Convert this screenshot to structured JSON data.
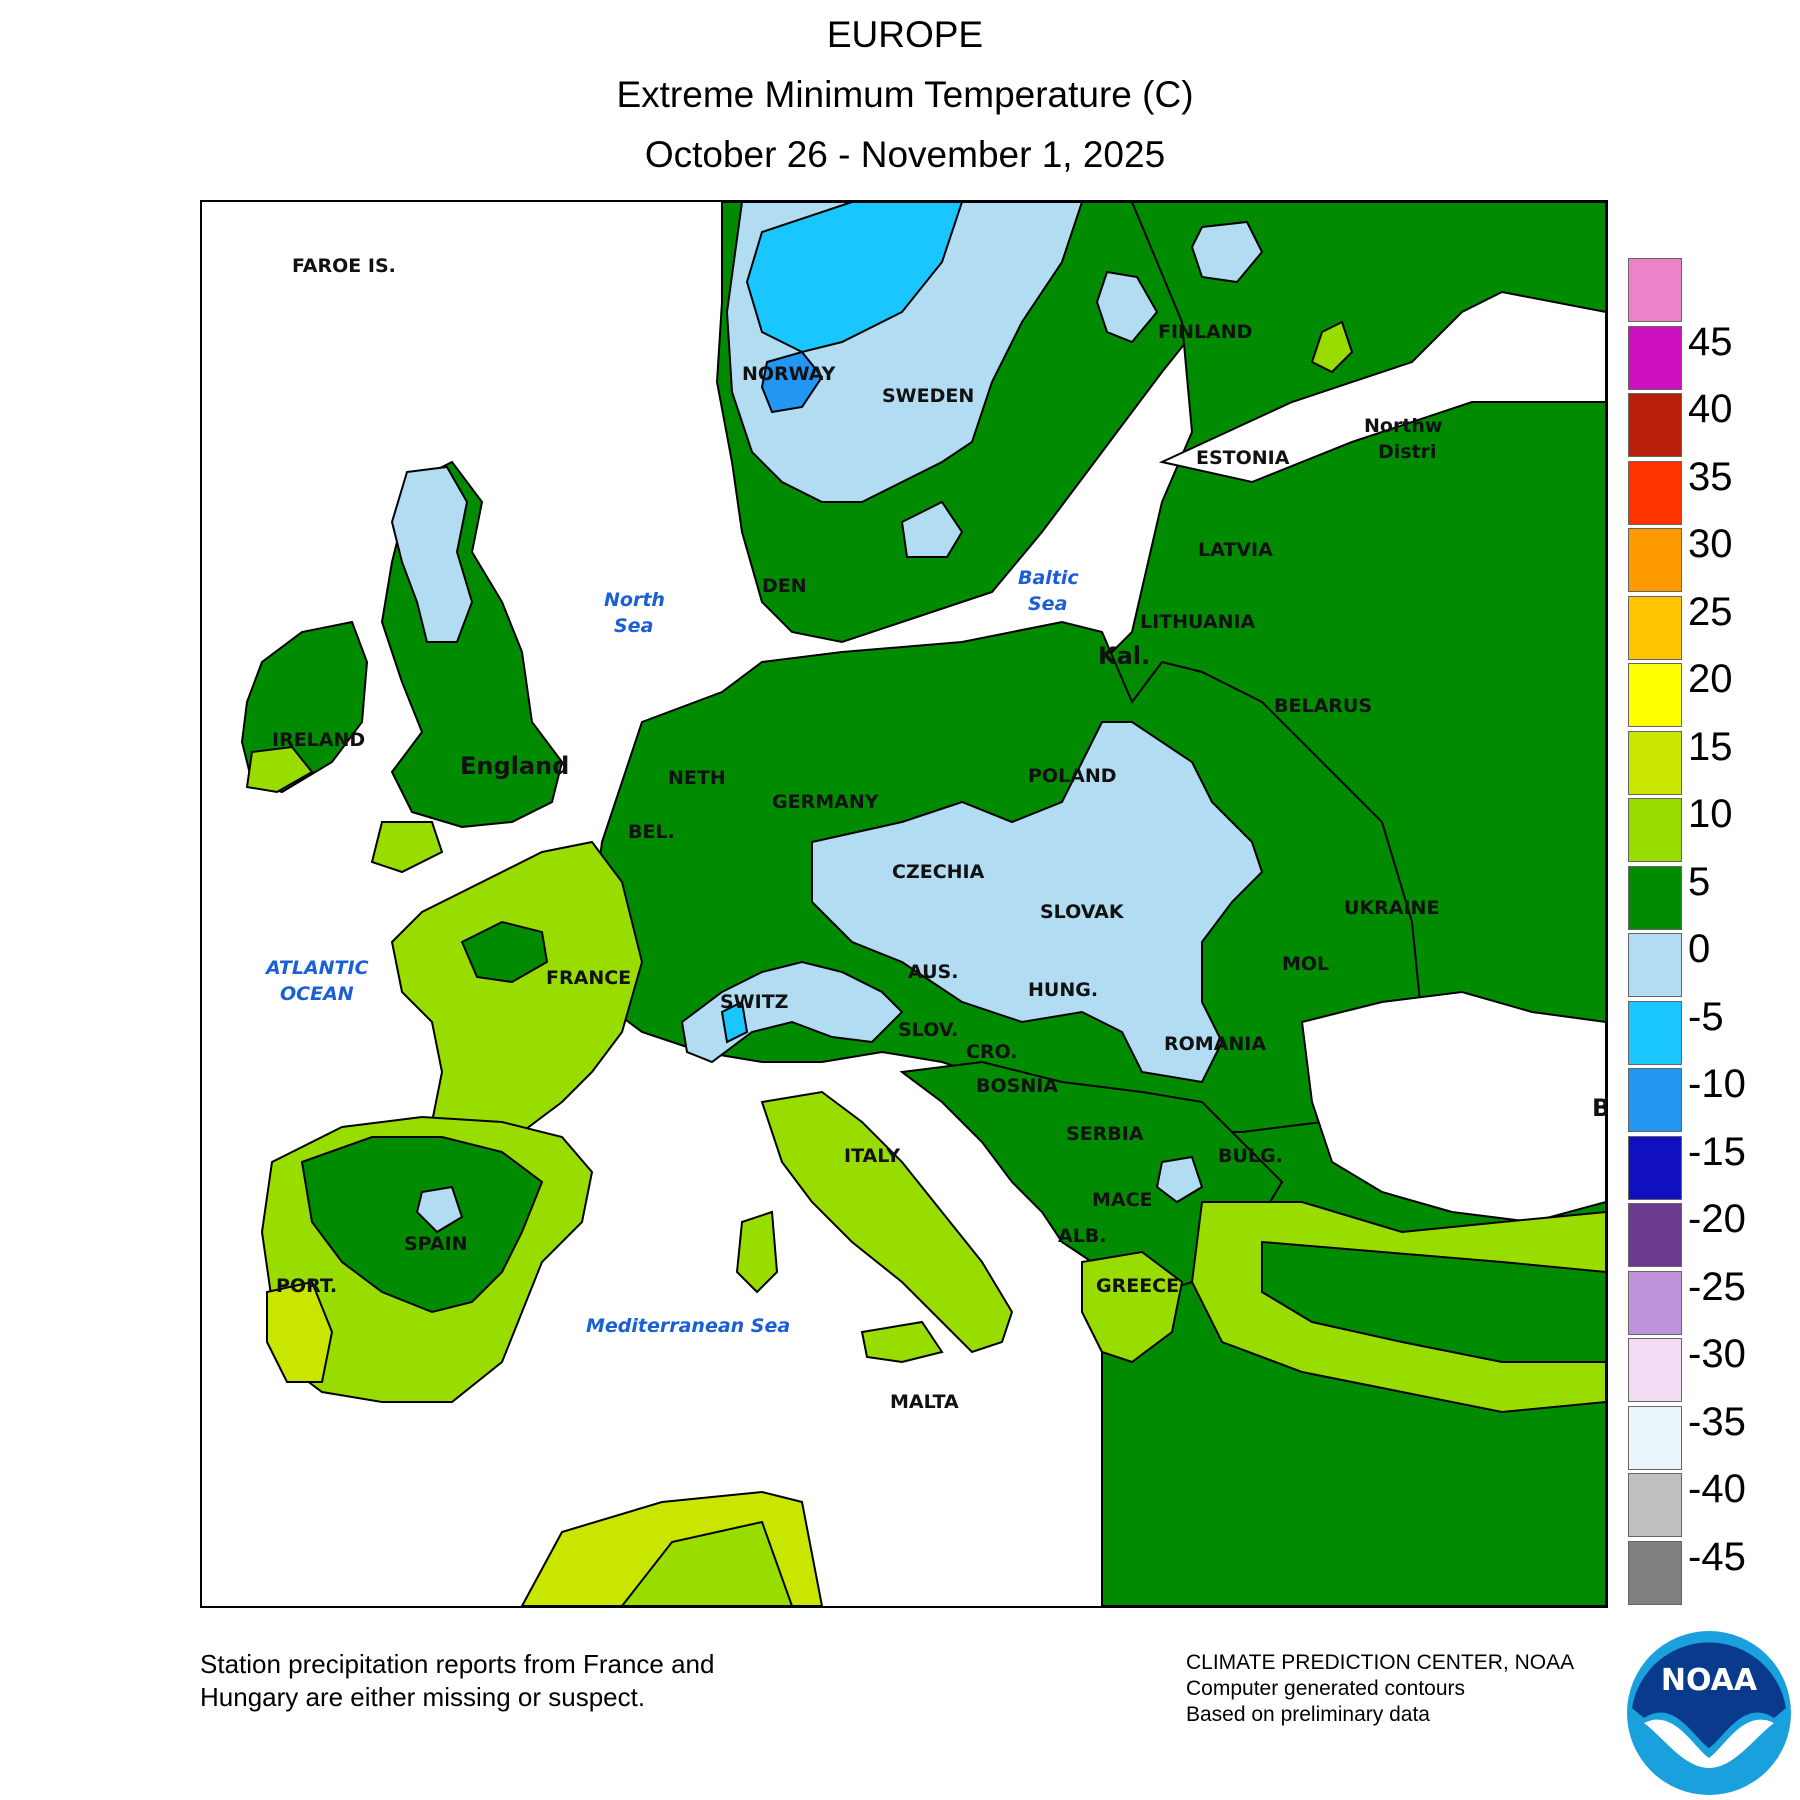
{
  "header": {
    "region": "EUROPE",
    "variable": "Extreme Minimum Temperature (C)",
    "period": "October 26 - November 1, 2025"
  },
  "map": {
    "country_labels": {
      "faroe": "FAROE IS.",
      "norway": "NORWAY",
      "sweden": "SWEDEN",
      "finland": "FINLAND",
      "estonia": "ESTONIA",
      "latvia": "LATVIA",
      "lithuania": "LITHUANIA",
      "kal": "Kal.",
      "belarus": "BELARUS",
      "poland": "POLAND",
      "ukraine": "UKRAINE",
      "northwest": "Northw",
      "district": "Distri",
      "ireland": "IRELAND",
      "england": "England",
      "denmark": "DEN",
      "netherlands": "NETH",
      "belgium": "BEL.",
      "germany": "GERMANY",
      "czechia": "CZECHIA",
      "slovakia": "SLOVAK",
      "france": "FRANCE",
      "switzerland": "SWITZ",
      "austria": "AUS.",
      "hungary": "HUNG.",
      "moldova": "MOL",
      "slovenia": "SLOV.",
      "croatia": "CRO.",
      "romania": "ROMANIA",
      "bosnia": "BOSNIA",
      "serbia": "SERBIA",
      "bulgaria": "BULG.",
      "italy": "ITALY",
      "macedonia": "MACE",
      "albania": "ALB.",
      "greece": "GREECE",
      "spain": "SPAIN",
      "portugal": "PORT.",
      "malta": "MALTA",
      "black_sea_edge": "B"
    },
    "sea_labels": {
      "north_sea_1": "North",
      "north_sea_2": "Sea",
      "baltic_1": "Baltic",
      "baltic_2": "Sea",
      "atlantic_1": "ATLANTIC",
      "atlantic_2": "OCEAN",
      "mediterranean": "Mediterranean Sea"
    }
  },
  "legend": {
    "ticks": [
      "45",
      "40",
      "35",
      "30",
      "25",
      "20",
      "15",
      "10",
      "5",
      "0",
      "-5",
      "-10",
      "-15",
      "-20",
      "-25",
      "-30",
      "-35",
      "-40",
      "-45"
    ],
    "colors": [
      "#ee82c8",
      "#cc10c0",
      "#b81e0a",
      "#ff3300",
      "#ff9900",
      "#ffc400",
      "#ffff00",
      "#c8e600",
      "#99dd00",
      "#008b00",
      "#b2dcf2",
      "#19c6ff",
      "#2196f3",
      "#1010c0",
      "#6b3b8f",
      "#c094dc",
      "#f4dcf4",
      "#eaf6fc",
      "#c0c0c0",
      "#808080"
    ]
  },
  "footer": {
    "note_line1": "Station precipitation reports from France and",
    "note_line2": "Hungary are either missing or suspect.",
    "credit_line1": "CLIMATE PREDICTION CENTER, NOAA",
    "credit_line2": "Computer generated contours",
    "credit_line3": "Based on preliminary data",
    "logo_text": "NOAA"
  }
}
